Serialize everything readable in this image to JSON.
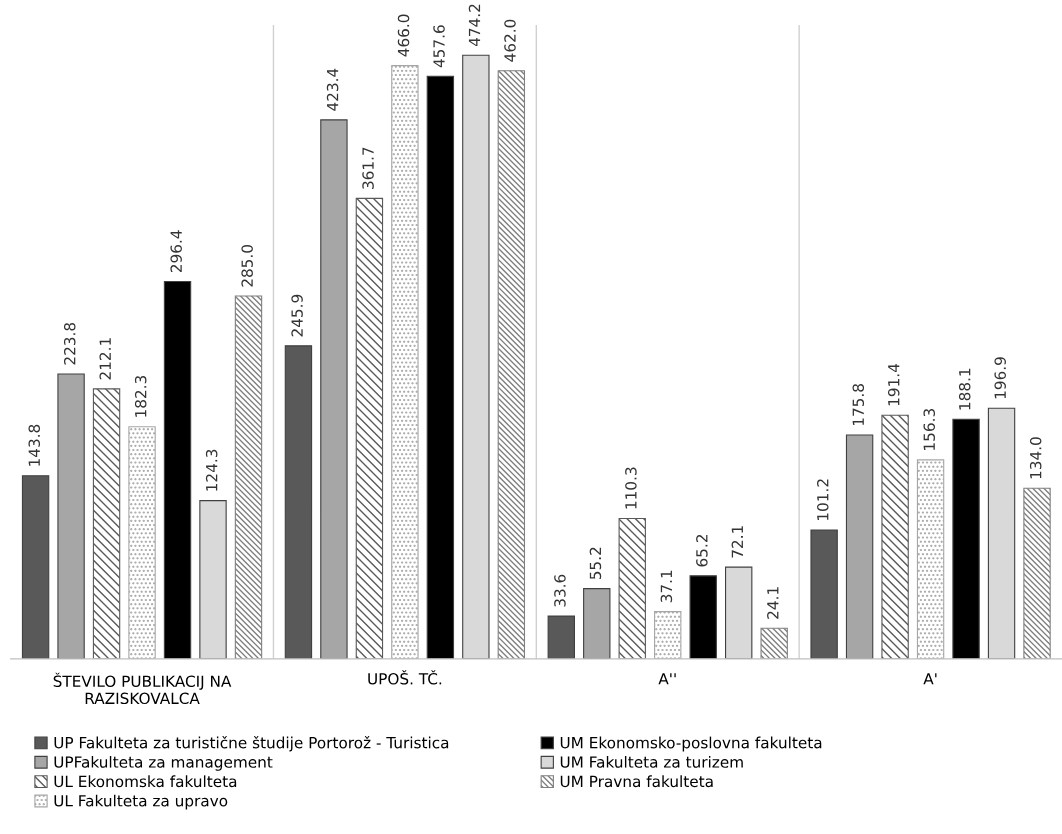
{
  "chart_data": {
    "type": "bar",
    "categories": [
      "ŠTEVILO PUBLIKACIJ NA RAZISKOVALCA",
      "UPOŠ. TČ.",
      "A''",
      "A'"
    ],
    "series": [
      {
        "name": "UP Fakulteta za turistične študije Portorož - Turistica",
        "color": "#595959",
        "values": [
          143.8,
          245.9,
          33.6,
          101.2
        ],
        "value_labels": [
          "143.8",
          "245.9",
          "33.6",
          "101.2"
        ]
      },
      {
        "name": "UPFakulteta za management",
        "color": "#a6a6a6",
        "values": [
          223.8,
          423.4,
          55.2,
          175.8
        ],
        "value_labels": [
          "223.8",
          "423.4",
          "55.2",
          "175.8"
        ]
      },
      {
        "name": "UL Ekonomska fakulteta",
        "color": "#595959",
        "values": [
          212.1,
          361.7,
          110.3,
          191.4
        ],
        "value_labels": [
          "212.1",
          "361.7",
          "110.3",
          "191.4"
        ]
      },
      {
        "name": "UL Fakulteta za upravo",
        "color": "#a6a6a6",
        "values": [
          182.3,
          466.0,
          37.1,
          156.3
        ],
        "value_labels": [
          "182.3",
          "466.0",
          "37.1",
          "156.3"
        ]
      },
      {
        "name": "UM Ekonomsko-poslovna fakulteta",
        "color": "#000000",
        "values": [
          296.4,
          457.6,
          65.2,
          188.1
        ],
        "value_labels": [
          "296.4",
          "457.6",
          "65.2",
          "188.1"
        ]
      },
      {
        "name": "UM Fakulteta za turizem",
        "color": "#d9d9d9",
        "values": [
          124.3,
          474.2,
          72.1,
          196.9
        ],
        "value_labels": [
          "124.3",
          "474.2",
          "72.1",
          "196.9"
        ]
      },
      {
        "name": "UM Pravna fakulteta",
        "color": "#7f7f7f",
        "values": [
          285.0,
          462.0,
          24.1,
          134.0
        ],
        "value_labels": [
          "285.0",
          "462.0",
          "24.1",
          "134.0"
        ]
      }
    ],
    "grid": "x",
    "legend": "bottom",
    "tick_labels": "x"
  }
}
